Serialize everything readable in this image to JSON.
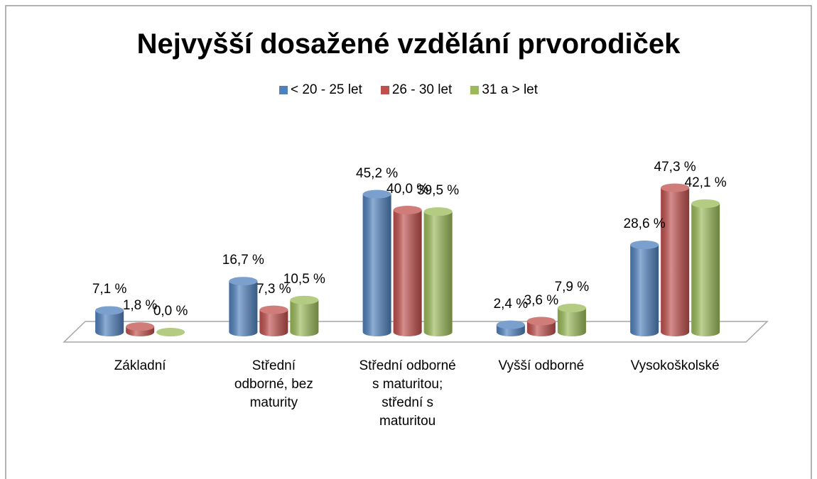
{
  "chart_data": {
    "type": "bar3d",
    "title": "Nejvyšší dosažené vzdělání prvorodiček",
    "categories": [
      "Základní",
      "Střední odborné, bez maturity",
      "Střední odborné s maturitou; střední s maturitou",
      "Vyšší odborné",
      "Vysokoškolské"
    ],
    "series": [
      {
        "name": "< 20 - 25 let",
        "color": "#4f81bd",
        "values": [
          7.1,
          16.7,
          45.2,
          2.4,
          28.6
        ],
        "value_labels": [
          "7,1 %",
          "16,7 %",
          "45,2 %",
          "2,4 %",
          "28,6 %"
        ]
      },
      {
        "name": "26 - 30 let",
        "color": "#c0504d",
        "values": [
          1.8,
          7.3,
          40.0,
          3.6,
          47.3
        ],
        "value_labels": [
          "1,8 %",
          "7,3 %",
          "40,0 %",
          "3,6 %",
          "47,3 %"
        ]
      },
      {
        "name": "31 a > let",
        "color": "#9bbb59",
        "values": [
          0.0,
          10.5,
          39.5,
          7.9,
          42.1
        ],
        "value_labels": [
          "0,0 %",
          "10,5 %",
          "39,5 %",
          "7,9 %",
          "42,1 %"
        ]
      }
    ],
    "legend": "top"
  }
}
